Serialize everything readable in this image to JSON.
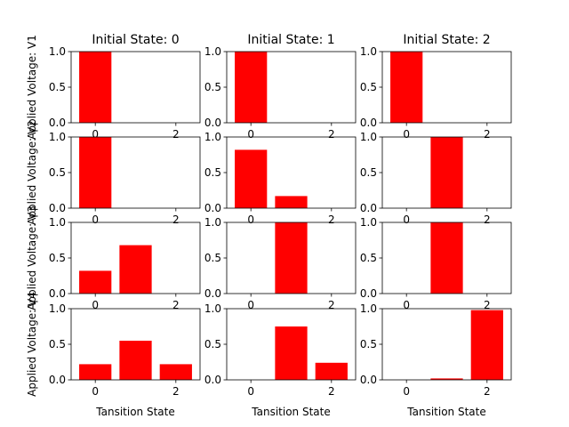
{
  "figure": {
    "col_titles": [
      "Initial State: 0",
      "Initial State: 1",
      "Initial State: 2"
    ],
    "row_ylabels": [
      "Applied Voltage: V1",
      "Applied Voltage: V2",
      "Applied Voltage: V3",
      "Applied Voltage: V4"
    ],
    "xlabel": "Tansition State",
    "bar_color": "#ff0000"
  },
  "chart_data": {
    "type": "bar",
    "layout": "4x3 grid of bar charts",
    "categories": [
      0,
      1,
      2
    ],
    "x_ticks": [
      0,
      2
    ],
    "xlim": [
      -0.6,
      2.6
    ],
    "ylim": [
      0,
      1.0
    ],
    "y_ticks": [
      "0.0",
      "0.5",
      "1.0"
    ],
    "grid": false,
    "panels": [
      {
        "row": 0,
        "col": 0,
        "values": [
          1.0,
          0.0,
          0.0
        ]
      },
      {
        "row": 0,
        "col": 1,
        "values": [
          1.0,
          0.0,
          0.0
        ]
      },
      {
        "row": 0,
        "col": 2,
        "values": [
          1.0,
          0.0,
          0.0
        ]
      },
      {
        "row": 1,
        "col": 0,
        "values": [
          1.0,
          0.0,
          0.0
        ]
      },
      {
        "row": 1,
        "col": 1,
        "values": [
          0.82,
          0.17,
          0.0
        ]
      },
      {
        "row": 1,
        "col": 2,
        "values": [
          0.0,
          1.0,
          0.0
        ]
      },
      {
        "row": 2,
        "col": 0,
        "values": [
          0.32,
          0.68,
          0.0
        ]
      },
      {
        "row": 2,
        "col": 1,
        "values": [
          0.0,
          1.0,
          0.0
        ]
      },
      {
        "row": 2,
        "col": 2,
        "values": [
          0.0,
          1.0,
          0.0
        ]
      },
      {
        "row": 3,
        "col": 0,
        "values": [
          0.22,
          0.55,
          0.22
        ]
      },
      {
        "row": 3,
        "col": 1,
        "values": [
          0.0,
          0.75,
          0.24
        ]
      },
      {
        "row": 3,
        "col": 2,
        "values": [
          0.0,
          0.02,
          0.98
        ]
      }
    ]
  }
}
